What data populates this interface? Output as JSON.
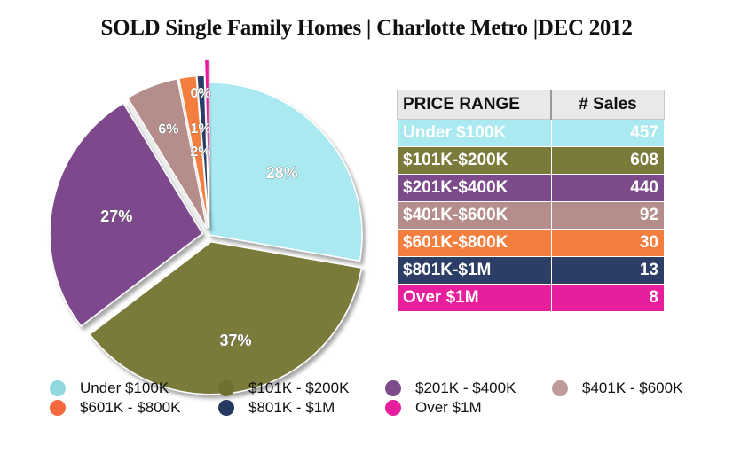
{
  "title": "SOLD Single Family Homes | Charlotte Metro |DEC 2012",
  "table": {
    "headers": [
      "PRICE RANGE",
      "# Sales"
    ],
    "rows": [
      {
        "label": "Under $100K",
        "value": "457",
        "color": "#a9e9ef"
      },
      {
        "label": "$101K-$200K",
        "value": "608",
        "color": "#7a7a3a"
      },
      {
        "label": "$201K-$400K",
        "value": "440",
        "color": "#7d4a8c"
      },
      {
        "label": "$401K-$600K",
        "value": "92",
        "color": "#b58d8a"
      },
      {
        "label": "$601K-$800K",
        "value": "30",
        "color": "#f47e3e"
      },
      {
        "label": "$801K-$1M",
        "value": "13",
        "color": "#2c3e66"
      },
      {
        "label": "Over $1M",
        "value": "8",
        "color": "#e81f9c"
      }
    ]
  },
  "chart_data": {
    "type": "pie",
    "title": "SOLD Single Family Homes | Charlotte Metro |DEC 2012",
    "categories": [
      "Under $100K",
      "$101K - $200K",
      "$201K - $400K",
      "$401K - $600K",
      "$601K - $800K",
      "$801K - $1M",
      "Over $1M"
    ],
    "values": [
      457,
      608,
      440,
      92,
      30,
      13,
      8
    ],
    "percent_labels": [
      "28%",
      "37%",
      "27%",
      "6%",
      "2%",
      "1%",
      "0%"
    ],
    "colors": [
      "#a9e9ef",
      "#7a7a3a",
      "#7d4a8c",
      "#b58d8a",
      "#f47e3e",
      "#2c3e66",
      "#e81f9c"
    ],
    "legend_position": "bottom"
  },
  "legend": [
    {
      "label": "Under $100K",
      "color": "#8fd9df"
    },
    {
      "label": "$101K - $200K",
      "color": "#6f6f32"
    },
    {
      "label": "$201K - $400K",
      "color": "#7d4a8c"
    },
    {
      "label": "$401K - $600K",
      "color": "#c09a98"
    },
    {
      "label": "$601K - $800K",
      "color": "#f46a3e"
    },
    {
      "label": "$801K - $1M",
      "color": "#263a60"
    },
    {
      "label": "Over $1M",
      "color": "#e81f9c"
    }
  ]
}
